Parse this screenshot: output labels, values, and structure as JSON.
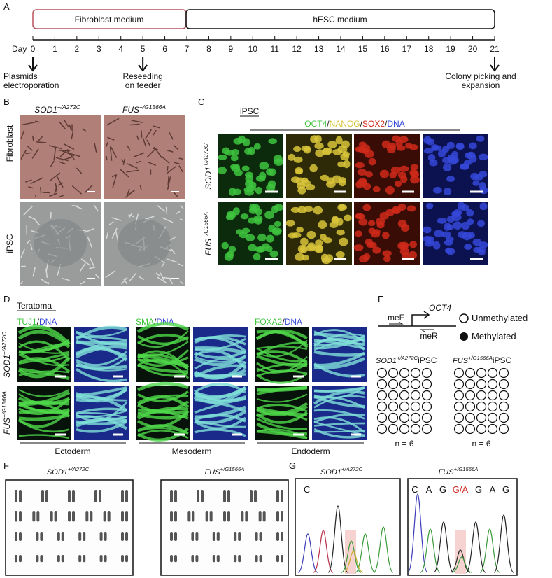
{
  "panel_labels": [
    "A",
    "B",
    "C",
    "D",
    "E",
    "F",
    "G"
  ],
  "timeline": {
    "phases": [
      "Fibroblast  medium",
      "hESC  medium"
    ],
    "axis_label": "Day",
    "days": [
      0,
      1,
      2,
      3,
      4,
      5,
      6,
      7,
      8,
      9,
      10,
      11,
      12,
      13,
      14,
      15,
      16,
      17,
      18,
      19,
      20,
      21
    ],
    "events": [
      [
        "Plasmids",
        "electroporation"
      ],
      [
        "Reseeding",
        "on feeder"
      ],
      [
        "Colony picking and",
        "expansion"
      ]
    ]
  },
  "genotypes": [
    {
      "gene": "SOD1",
      "allele": "+/A272C"
    },
    {
      "gene": "FUS",
      "allele": "+/G1566A"
    }
  ],
  "panel_b": {
    "rows": [
      "Fibroblast",
      "iPSC"
    ]
  },
  "panel_c": {
    "title": "iPSC",
    "stains": [
      "OCT4",
      "NANOG",
      "SOX2",
      "DNA"
    ],
    "separator": "/"
  },
  "panel_d": {
    "title": "Teratoma",
    "stains": [
      [
        "TUJ1",
        "DNA"
      ],
      [
        "SMA",
        "DNA"
      ],
      [
        "FOXA2",
        "DNA"
      ]
    ],
    "separator": "/",
    "germ_layers": [
      "Ectoderm",
      "Mesoderm",
      "Endoderm"
    ]
  },
  "panel_e": {
    "primers": [
      "meF",
      "meR"
    ],
    "gene": "OCT4",
    "legend": [
      "Unmethylated",
      "Methylated"
    ],
    "cell_type": "iPSC",
    "n_label": "n = 6"
  },
  "panel_g": {
    "partial_call": "C",
    "sequence": [
      "C",
      "A",
      "G",
      "G/A",
      "G",
      "A",
      "G"
    ]
  }
}
